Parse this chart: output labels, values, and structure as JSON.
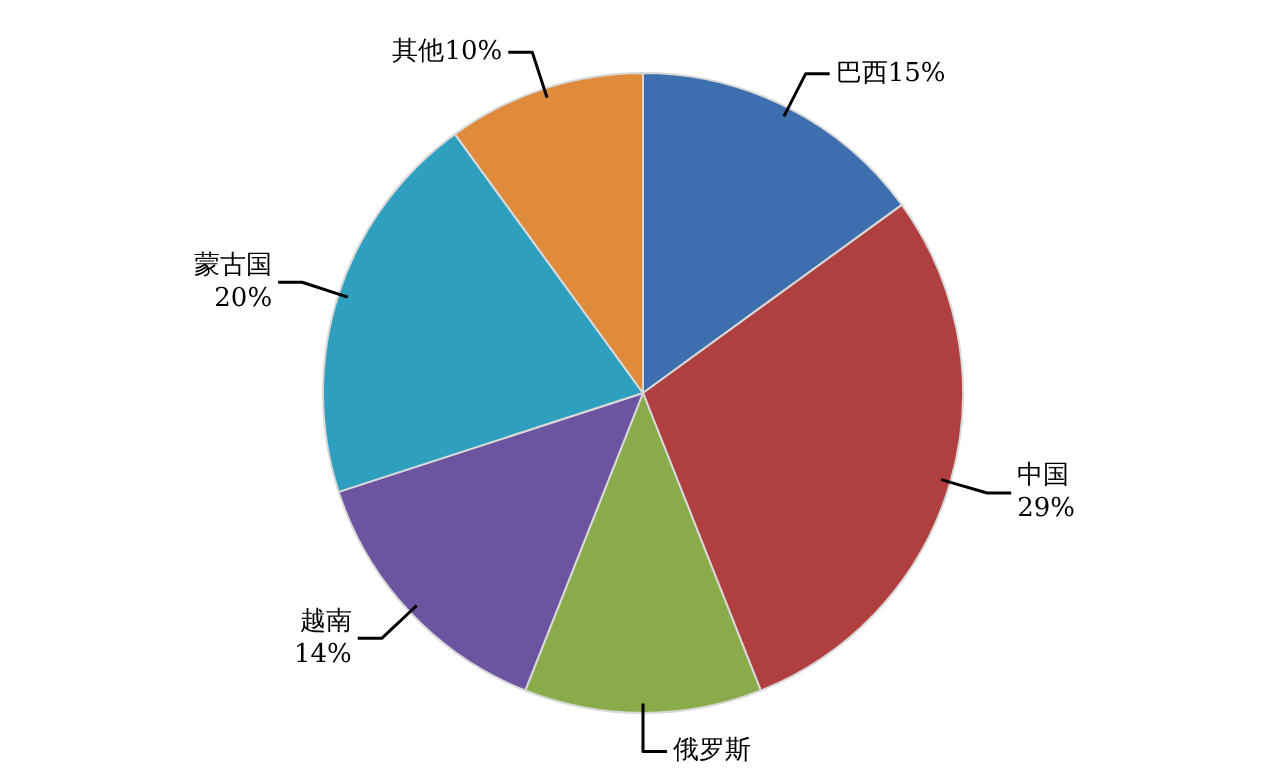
{
  "chart_data": {
    "type": "pie",
    "categories": [
      "巴西",
      "中国",
      "俄罗斯",
      "越南",
      "蒙古国",
      "其他"
    ],
    "values": [
      15,
      29,
      12,
      14,
      20,
      10
    ],
    "value_labels": [
      "15%",
      "29%",
      null,
      "14%",
      "20%",
      "10%"
    ],
    "colors": [
      "#3d6fae",
      "#b0403f",
      "#8aab4a",
      "#6c54a0",
      "#2f9fbf",
      "#e08a3c"
    ]
  }
}
